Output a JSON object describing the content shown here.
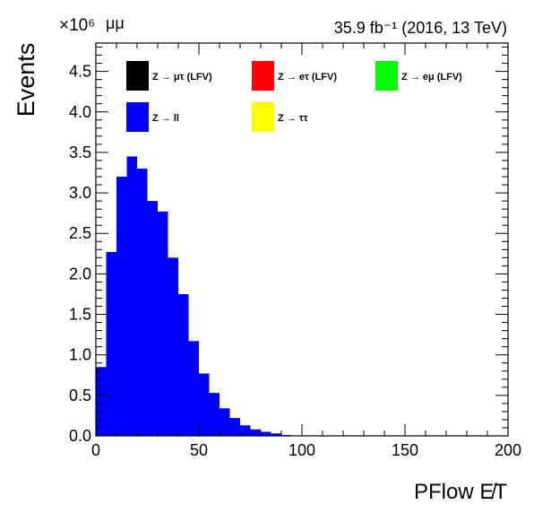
{
  "chart_data": {
    "type": "bar",
    "title": "",
    "channel_label": "μμ",
    "lumi_label": "35.9 fb⁻¹ (2016, 13 TeV)",
    "ylabel": "Events",
    "xlabel": "PFlow E̸T",
    "y_multiplier_label": "×10⁶",
    "xlim": [
      0,
      200
    ],
    "ylim": [
      0,
      4.85
    ],
    "x_ticks": [
      0,
      50,
      100,
      150,
      200
    ],
    "x_tick_labels": [
      "0",
      "50",
      "100",
      "150",
      "200"
    ],
    "y_ticks": [
      0,
      0.5,
      1.0,
      1.5,
      2.0,
      2.5,
      3.0,
      3.5,
      4.0,
      4.5
    ],
    "y_tick_labels": [
      "0.0",
      "0.5",
      "1.0",
      "1.5",
      "2.0",
      "2.5",
      "3.0",
      "3.5",
      "4.0",
      "4.5"
    ],
    "legend_placement": "top",
    "legend": [
      {
        "label": "Z → μτ (LFV)",
        "color": "#000000"
      },
      {
        "label": "Z → eτ (LFV)",
        "color": "#ff0000"
      },
      {
        "label": "Z → eμ (LFV)",
        "color": "#00ff00"
      },
      {
        "label": "Z → ll",
        "color": "#0000ff"
      },
      {
        "label": "Z → ττ",
        "color": "#ffff00"
      }
    ],
    "series": [
      {
        "name": "Z → ll",
        "color": "#0000ff",
        "bin_width": 5,
        "x": [
          0,
          5,
          10,
          15,
          20,
          25,
          30,
          35,
          40,
          45,
          50,
          55,
          60,
          65,
          70,
          75,
          80,
          85,
          90
        ],
        "values": [
          0.85,
          2.27,
          3.2,
          3.45,
          3.3,
          2.9,
          2.77,
          2.2,
          1.75,
          1.17,
          0.77,
          0.53,
          0.34,
          0.22,
          0.13,
          0.08,
          0.05,
          0.03,
          0.01
        ]
      }
    ]
  }
}
